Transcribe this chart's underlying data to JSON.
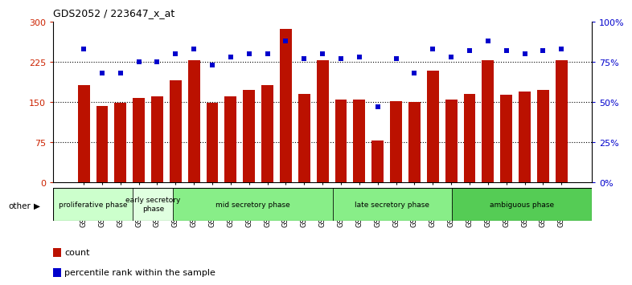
{
  "title": "GDS2052 / 223647_x_at",
  "samples": [
    "GSM109814",
    "GSM109815",
    "GSM109816",
    "GSM109817",
    "GSM109820",
    "GSM109821",
    "GSM109822",
    "GSM109824",
    "GSM109825",
    "GSM109826",
    "GSM109827",
    "GSM109828",
    "GSM109829",
    "GSM109830",
    "GSM109831",
    "GSM109834",
    "GSM109835",
    "GSM109836",
    "GSM109837",
    "GSM109838",
    "GSM109839",
    "GSM109818",
    "GSM109819",
    "GSM109823",
    "GSM109832",
    "GSM109833",
    "GSM109840"
  ],
  "counts": [
    182,
    143,
    148,
    158,
    160,
    190,
    228,
    148,
    160,
    173,
    182,
    287,
    165,
    228,
    155,
    155,
    78,
    152,
    150,
    208,
    155,
    165,
    228,
    163,
    170,
    173,
    228
  ],
  "percentile": [
    83,
    68,
    68,
    75,
    75,
    80,
    83,
    73,
    78,
    80,
    80,
    88,
    77,
    80,
    77,
    78,
    47,
    77,
    68,
    83,
    78,
    82,
    88,
    82,
    80,
    82,
    83
  ],
  "phases": [
    {
      "label": "proliferative phase",
      "start": 0,
      "end": 4,
      "color": "#ccffcc"
    },
    {
      "label": "early secretory\nphase",
      "start": 4,
      "end": 6,
      "color": "#e6ffe6"
    },
    {
      "label": "mid secretory phase",
      "start": 6,
      "end": 14,
      "color": "#88ee88"
    },
    {
      "label": "late secretory phase",
      "start": 14,
      "end": 20,
      "color": "#88ee88"
    },
    {
      "label": "ambiguous phase",
      "start": 20,
      "end": 27,
      "color": "#55cc55"
    }
  ],
  "ylim_left": [
    0,
    300
  ],
  "ylim_right": [
    0,
    100
  ],
  "yticks_left": [
    0,
    75,
    150,
    225,
    300
  ],
  "yticks_right": [
    0,
    25,
    50,
    75,
    100
  ],
  "bar_color": "#bb1100",
  "dot_color": "#0000cc",
  "background_color": "#ffffff",
  "other_label": "other",
  "legend_count": "count",
  "legend_percentile": "percentile rank within the sample"
}
